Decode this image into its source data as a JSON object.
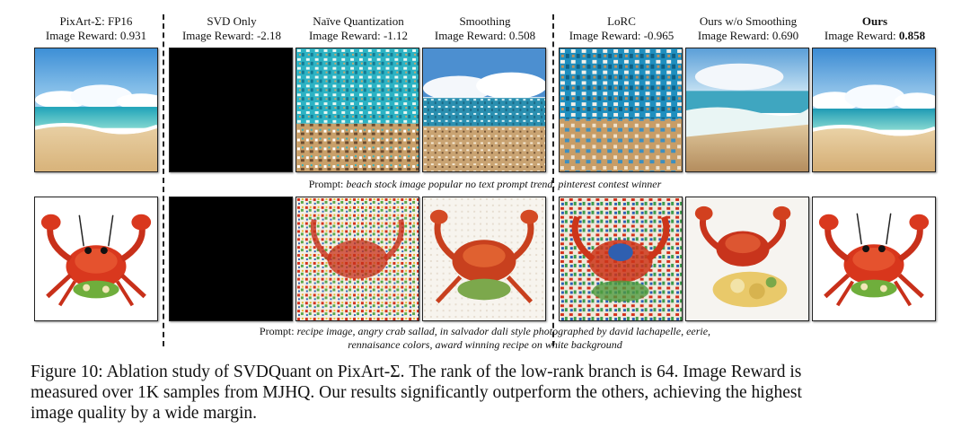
{
  "columns": [
    {
      "title": "PixArt-Σ: FP16",
      "reward_label": "Image Reward:",
      "reward": "0.931"
    },
    {
      "title": "SVD Only",
      "reward_label": "Image Reward:",
      "reward": "-2.18"
    },
    {
      "title": "Naïve Quantization",
      "reward_label": "Image Reward:",
      "reward": "-1.12"
    },
    {
      "title": "Smoothing",
      "reward_label": "Image Reward:",
      "reward": "0.508"
    },
    {
      "title": "LoRC",
      "reward_label": "Image Reward:",
      "reward": "-0.965"
    },
    {
      "title": "Ours w/o Smoothing",
      "reward_label": "Image Reward:",
      "reward": "0.690"
    },
    {
      "title": "Ours",
      "reward_label": "Image Reward:",
      "reward": "0.858"
    }
  ],
  "prompts": [
    {
      "label": "Prompt:",
      "text": "beach stock image popular no text prompt trend. pinterest contest winner"
    },
    {
      "label": "Prompt:",
      "text": "recipe image, angry crab sallad, in salvador dali style photographed by david lachapelle, eerie,",
      "text2": "rennaisance colors, award winning recipe on white background"
    }
  ],
  "caption": {
    "line1": "Figure 10: Ablation study of SVDQuant on PixArt-Σ. The rank of the low-rank branch is 64. Image Reward is",
    "line2": "measured over 1K samples from MJHQ. Our results significantly outperform the others, achieving the highest",
    "line3": "image quality by a wide margin."
  }
}
